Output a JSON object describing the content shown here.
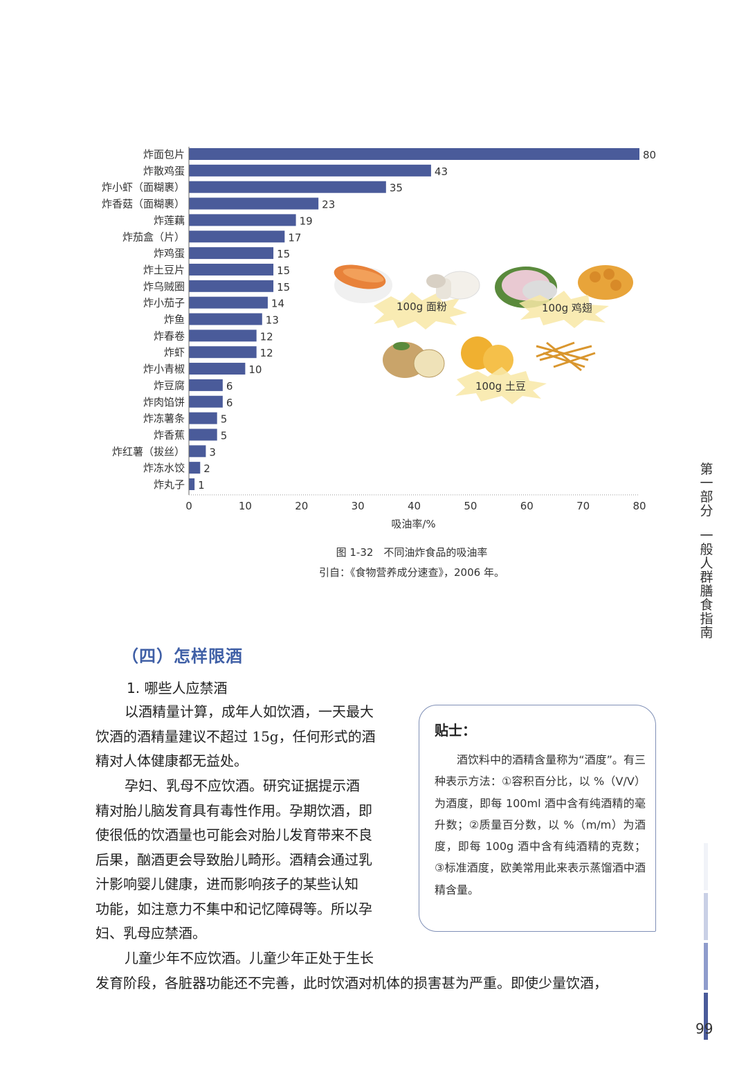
{
  "chart_data": {
    "type": "bar",
    "orientation": "horizontal",
    "categories": [
      "炸面包片",
      "炸散鸡蛋",
      "炸小虾（面糊裹）",
      "炸香菇（面糊裹）",
      "炸莲藕",
      "炸茄盒（片）",
      "炸鸡蛋",
      "炸土豆片",
      "炸乌贼圈",
      "炸小茄子",
      "炸鱼",
      "炸春卷",
      "炸虾",
      "炸小青椒",
      "炸豆腐",
      "炸肉馅饼",
      "炸冻薯条",
      "炸香蕉",
      "炸红薯（拔丝）",
      "炸冻水饺",
      "炸丸子"
    ],
    "values": [
      80,
      43,
      35,
      23,
      19,
      17,
      15,
      15,
      15,
      14,
      13,
      12,
      12,
      10,
      6,
      6,
      5,
      5,
      3,
      2,
      1
    ],
    "xlabel": "吸油率/%",
    "xlim": [
      0,
      80
    ],
    "xticks": [
      0,
      10,
      20,
      30,
      40,
      50,
      60,
      70,
      80
    ],
    "grid": false,
    "bar_color": "#4a5b9a",
    "annotations": [
      "100g 面粉",
      "100g 鸡翅",
      "100g 土豆"
    ]
  },
  "figure": {
    "caption": "图 1-32　不同油炸食品的吸油率",
    "source": "引自：《食物营养成分速查》，2006 年。"
  },
  "side_label": [
    "第",
    "一",
    "部",
    "分",
    "一",
    "般",
    "人",
    "群",
    "膳",
    "食",
    "指",
    "南"
  ],
  "section": {
    "title": "（四）怎样限酒",
    "subtitle": "1. 哪些人应禁酒"
  },
  "body": {
    "p1_lines": [
      "以酒精量计算，成年人如饮酒，一天最大",
      "饮酒的酒精量建议不超过 15g，任何形式的酒",
      "精对人体健康都无益处。"
    ],
    "p2_lines": [
      "孕妇、乳母不应饮酒。研究证据提示酒",
      "精对胎儿脑发育具有毒性作用。孕期饮酒，即",
      "使很低的饮酒量也可能会对胎儿发育带来不良",
      "后果，酗酒更会导致胎儿畸形。酒精会通过乳",
      "汁影响婴儿健康，进而影响孩子的某些认知",
      "功能，如注意力不集中和记忆障碍等。所以孕",
      "妇、乳母应禁酒。"
    ],
    "p3_lines": [
      "儿童少年不应饮酒。儿童少年正处于生长",
      "发育阶段，各脏器功能还不完善，此时饮酒对机体的损害甚为严重。即使少量饮酒，"
    ]
  },
  "tip": {
    "title": "贴士：",
    "text": "酒饮料中的酒精含量称为“酒度”。有三种表示方法：①容积百分比，以 %（V/V）为酒度，即每 100ml 酒中含有纯酒精的毫升数；②质量百分数，以 %（m/m）为酒度，即每 100g 酒中含有纯酒精的克数；③标准酒度，欧美常用此来表示蒸馏酒中酒精含量。"
  },
  "page_number": "99",
  "colors": {
    "accent": "#3f5fa6",
    "bar": "#4a5b9a",
    "tip_border": "#7f8fb6",
    "burst": "#f7e7a0"
  }
}
